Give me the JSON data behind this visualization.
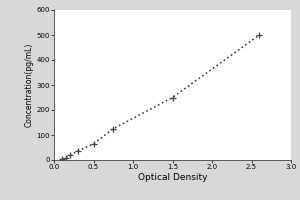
{
  "x_data": [
    0.1,
    0.15,
    0.2,
    0.3,
    0.5,
    0.75,
    1.5,
    2.6
  ],
  "y_data": [
    5,
    10,
    20,
    35,
    65,
    125,
    250,
    500
  ],
  "xlabel": "Optical Density",
  "ylabel": "Concentration(pg/mL)",
  "xlim": [
    0,
    3
  ],
  "ylim": [
    0,
    600
  ],
  "xticks": [
    0,
    0.5,
    1,
    1.5,
    2,
    2.5,
    3
  ],
  "yticks": [
    0,
    100,
    200,
    300,
    400,
    500,
    600
  ],
  "line_color": "#444444",
  "marker_color": "#444444",
  "background_color": "#d8d8d8",
  "plot_bg_color": "#ffffff",
  "marker": "+",
  "line_style": ":",
  "line_width": 1.2,
  "xlabel_fontsize": 6.5,
  "ylabel_fontsize": 5.5,
  "tick_fontsize": 5
}
